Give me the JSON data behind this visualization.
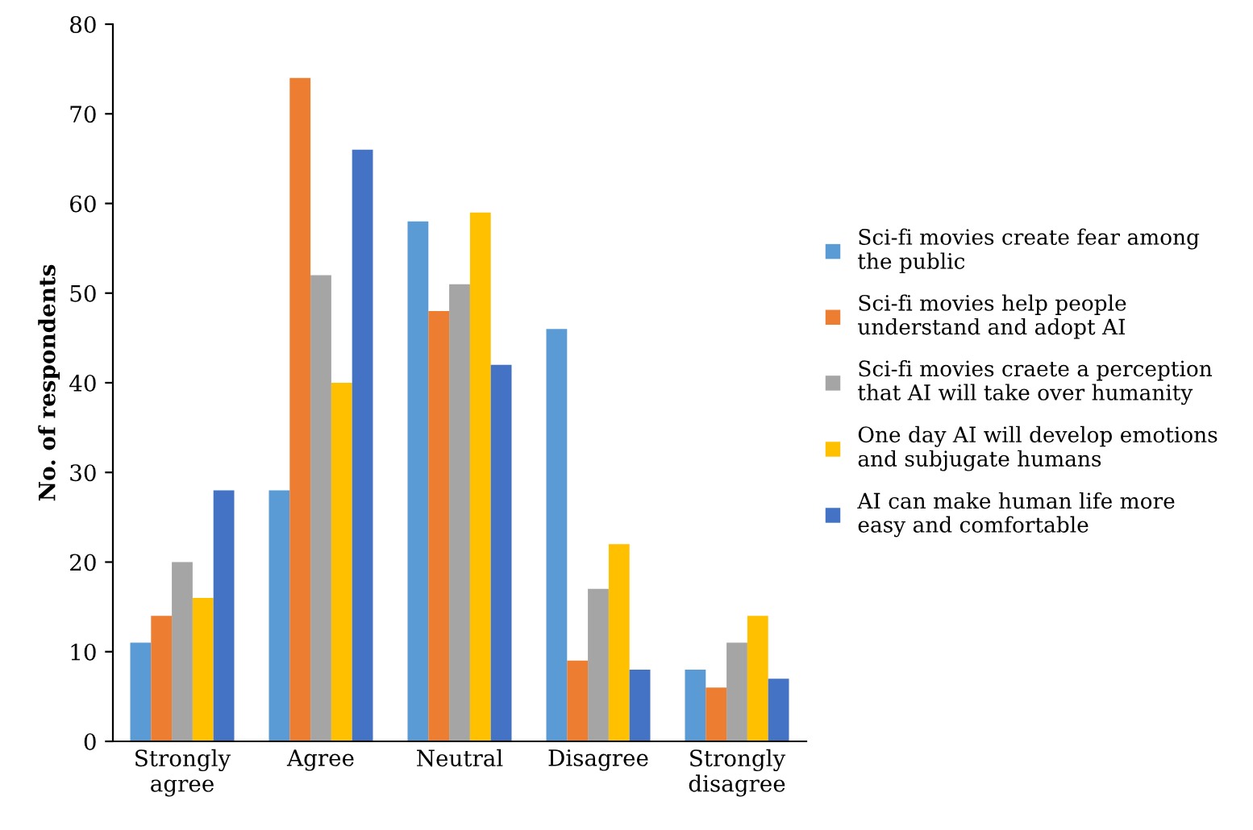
{
  "chart_data": {
    "type": "bar",
    "ylabel": "No. of respondents",
    "categories": [
      "Strongly\nagree",
      "Agree",
      "Neutral",
      "Disagree",
      "Strongly\ndisagree"
    ],
    "series": [
      {
        "name": "Sci-fi movies create fear among\nthe public",
        "color": "#5b9bd5",
        "values": [
          11,
          28,
          58,
          46,
          8
        ]
      },
      {
        "name": "Sci-fi movies help people\nunderstand and adopt AI",
        "color": "#ed7d31",
        "values": [
          14,
          74,
          48,
          9,
          6
        ]
      },
      {
        "name": "Sci-fi movies craete a perception\nthat AI will take over humanity",
        "color": "#a5a5a5",
        "values": [
          20,
          52,
          51,
          17,
          11
        ]
      },
      {
        "name": "One day AI will develop emotions\nand subjugate humans",
        "color": "#ffc000",
        "values": [
          16,
          40,
          59,
          22,
          14
        ]
      },
      {
        "name": "AI can make human life more\neasy and comfortable",
        "color": "#4472c4",
        "values": [
          28,
          66,
          42,
          8,
          7
        ]
      }
    ],
    "ylim": [
      0,
      80
    ],
    "yticks": [
      0,
      10,
      20,
      30,
      40,
      50,
      60,
      70,
      80
    ],
    "grid": false,
    "legend": "right"
  }
}
